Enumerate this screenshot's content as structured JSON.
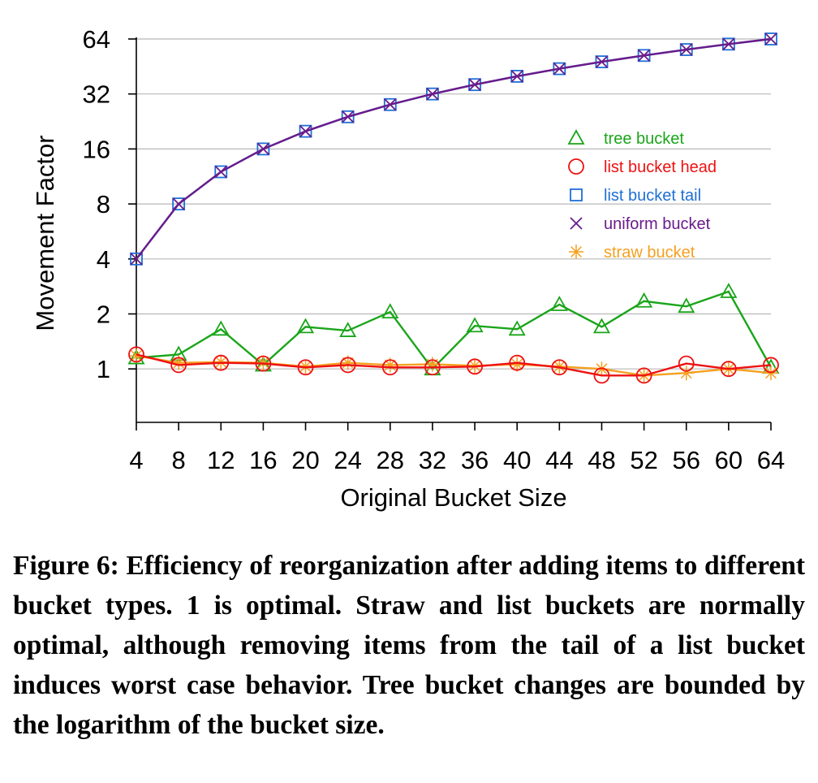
{
  "chart_data": {
    "type": "line",
    "title": "",
    "xlabel": "Original Bucket Size",
    "ylabel": "Movement Factor",
    "y_scale": "log2",
    "ylim": [
      0.5,
      64
    ],
    "xlim": [
      4,
      64
    ],
    "grid": "horizontal",
    "x": [
      4,
      8,
      12,
      16,
      20,
      24,
      28,
      32,
      36,
      40,
      44,
      48,
      52,
      56,
      60,
      64
    ],
    "x_tick_labels": [
      "4",
      "8",
      "12",
      "16",
      "20",
      "24",
      "28",
      "32",
      "36",
      "40",
      "44",
      "48",
      "52",
      "56",
      "60",
      "64"
    ],
    "y_ticks": [
      1,
      2,
      4,
      8,
      16,
      32,
      64
    ],
    "y_tick_labels": [
      "1",
      "2",
      "4",
      "8",
      "16",
      "32",
      "64"
    ],
    "legend_position": "right, below top",
    "series": [
      {
        "name": "tree bucket",
        "color": "#1aa51a",
        "marker": "triangle",
        "values": [
          1.15,
          1.2,
          1.65,
          1.05,
          1.7,
          1.62,
          2.05,
          1.0,
          1.72,
          1.65,
          2.25,
          1.7,
          2.35,
          2.2,
          2.65,
          1.02
        ]
      },
      {
        "name": "list bucket head",
        "color": "#ee1111",
        "marker": "circle",
        "values": [
          1.2,
          1.05,
          1.08,
          1.07,
          1.02,
          1.05,
          1.02,
          1.02,
          1.03,
          1.08,
          1.02,
          0.92,
          0.92,
          1.07,
          1.0,
          1.05
        ]
      },
      {
        "name": "list bucket tail",
        "color": "#1f6fd6",
        "marker": "square",
        "values": [
          4,
          8,
          12,
          16,
          20,
          24,
          28,
          32,
          36,
          40,
          44,
          48,
          52,
          56,
          60,
          64
        ]
      },
      {
        "name": "uniform bucket",
        "color": "#6a1b8a",
        "marker": "x",
        "values": [
          4,
          8,
          12,
          16,
          20,
          24,
          28,
          32,
          36,
          40,
          44,
          48,
          52,
          56,
          60,
          64
        ]
      },
      {
        "name": "straw bucket",
        "color": "#f5a020",
        "marker": "star",
        "values": [
          1.18,
          1.08,
          1.09,
          1.08,
          1.03,
          1.08,
          1.05,
          1.06,
          1.04,
          1.06,
          1.03,
          1.0,
          0.92,
          0.95,
          1.0,
          0.95
        ]
      }
    ]
  },
  "caption": "Figure 6: Efficiency of reorganization after adding items to different bucket types. 1 is optimal. Straw and list buckets are normally optimal, although removing items from the tail of a list bucket induces worst case behavior. Tree bucket changes are bounded by the logarithm of the bucket size."
}
